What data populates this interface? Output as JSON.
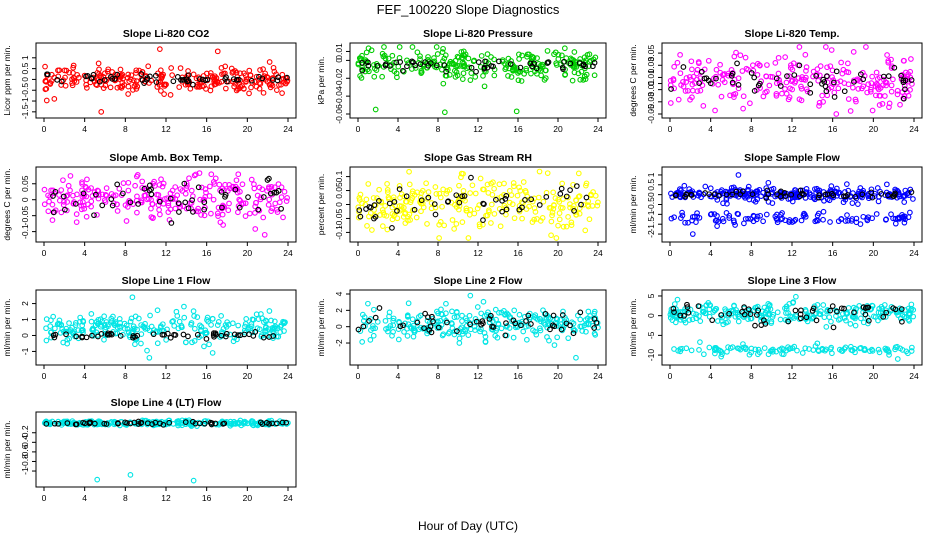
{
  "figure": {
    "title": "FEF_100220  Slope Diagnostics",
    "xlabel": "Hour of Day (UTC)"
  },
  "chart_data": [
    {
      "type": "scatter",
      "title": "Slope Li-820 CO2",
      "ylabel": "Licor ppm per min.",
      "color": "#ff0000",
      "xlim": [
        0,
        24
      ],
      "ylim": [
        -1.6,
        1.5
      ],
      "xticks": [
        0,
        4,
        8,
        12,
        16,
        20,
        24
      ],
      "yticks": [
        -1.5,
        -1.0,
        -0.5,
        0.0,
        0.5,
        1.0
      ],
      "center": 0.0,
      "spread": 0.28,
      "outlier_values": [
        1.4,
        -1.5,
        1.3,
        -0.9
      ],
      "black_spread": 0.12
    },
    {
      "type": "scatter",
      "title": "Slope Li-820 Pressure",
      "ylabel": "kPa per min.",
      "color": "#00cc00",
      "xlim": [
        0,
        24
      ],
      "ylim": [
        -0.06,
        0.015
      ],
      "xticks": [
        0,
        4,
        8,
        12,
        16,
        20,
        24
      ],
      "yticks": [
        -0.06,
        -0.04,
        -0.02,
        0.0,
        0.01
      ],
      "center": -0.005,
      "spread": 0.008,
      "outlier_values": [
        -0.058,
        -0.055,
        -0.057
      ],
      "black_spread": 0.003
    },
    {
      "type": "scatter",
      "title": "Slope Li-820 Temp.",
      "ylabel": "degrees C per min.",
      "color": "#ff00ff",
      "xlim": [
        0,
        24
      ],
      "ylim": [
        -0.05,
        0.06
      ],
      "xticks": [
        0,
        4,
        8,
        12,
        16,
        20,
        24
      ],
      "yticks": [
        -0.05,
        -0.03,
        -0.01,
        0.0,
        0.01,
        0.03,
        0.05
      ],
      "center": 0.005,
      "spread": 0.022,
      "outlier_values": [
        -0.045,
        0.055
      ],
      "black_spread": 0.015
    },
    {
      "type": "scatter",
      "title": "Slope Amb. Box Temp.",
      "ylabel": "degrees C per min.",
      "color": "#ff00ff",
      "xlim": [
        0,
        24
      ],
      "ylim": [
        -0.12,
        0.09
      ],
      "xticks": [
        0,
        4,
        8,
        12,
        16,
        20,
        24
      ],
      "yticks": [
        -0.1,
        -0.05,
        0.0,
        0.05
      ],
      "center": 0.0,
      "spread": 0.035,
      "outlier_values": [
        -0.11,
        0.08
      ],
      "black_spread": 0.03
    },
    {
      "type": "scatter",
      "title": "Slope Gas Stream RH",
      "ylabel": "percent per min.",
      "color": "#ffff00",
      "xlim": [
        0,
        24
      ],
      "ylim": [
        -0.12,
        0.12
      ],
      "xticks": [
        0,
        4,
        8,
        12,
        16,
        20,
        24
      ],
      "yticks": [
        -0.1,
        -0.05,
        0.0,
        0.05,
        0.1
      ],
      "center": 0.0,
      "spread": 0.045,
      "outlier_values": [
        -0.11,
        0.11
      ],
      "black_spread": 0.035
    },
    {
      "type": "scatter",
      "title": "Slope Sample Flow",
      "ylabel": "ml/min per min.",
      "color": "#0000ff",
      "xlim": [
        0,
        24
      ],
      "ylim": [
        -2.2,
        1.2
      ],
      "xticks": [
        0,
        4,
        8,
        12,
        16,
        20,
        24
      ],
      "yticks": [
        -2.0,
        -1.5,
        -1.0,
        -0.5,
        0.0,
        0.5,
        1.0
      ],
      "center": 0.0,
      "spread": 0.18,
      "band2_center": -1.2,
      "band2_spread": 0.15,
      "outlier_values": [
        -2.0,
        1.0
      ],
      "black_spread": 0.1
    },
    {
      "type": "scatter",
      "title": "Slope Line 1 Flow",
      "ylabel": "ml/min per min.",
      "color": "#00e5e5",
      "xlim": [
        0,
        24
      ],
      "ylim": [
        -1.6,
        2.6
      ],
      "xticks": [
        0,
        4,
        8,
        12,
        16,
        20,
        24
      ],
      "yticks": [
        -1,
        0,
        1,
        2
      ],
      "center": 0.4,
      "spread": 0.45,
      "outlier_values": [
        2.4,
        -1.4
      ],
      "black_fixed": 0.0,
      "black_spread": 0.08
    },
    {
      "type": "scatter",
      "title": "Slope Line 2 Flow",
      "ylabel": "ml/min per min.",
      "color": "#00e5e5",
      "xlim": [
        0,
        24
      ],
      "ylim": [
        -4.2,
        4.0
      ],
      "xticks": [
        0,
        4,
        8,
        12,
        16,
        20,
        24
      ],
      "yticks": [
        -2,
        0,
        2,
        4
      ],
      "center": 0.3,
      "spread": 1.0,
      "outlier_values": [
        3.8,
        -3.8
      ],
      "black_spread": 0.8
    },
    {
      "type": "scatter",
      "title": "Slope Line 3 Flow",
      "ylabel": "ml/min per min.",
      "color": "#00e5e5",
      "xlim": [
        0,
        24
      ],
      "ylim": [
        -11.5,
        5.5
      ],
      "xticks": [
        0,
        4,
        8,
        12,
        16,
        20,
        24
      ],
      "yticks": [
        -10,
        -5,
        0,
        5
      ],
      "center": 0.5,
      "spread": 1.2,
      "band2_center": -8.7,
      "band2_spread": 0.6,
      "outlier_values": [
        4.8,
        -11.0
      ],
      "black_spread": 1.5
    },
    {
      "type": "scatter",
      "title": "Slope Line 4 (LT) Flow",
      "ylabel": "ml/min per min.",
      "color": "#00e5e5",
      "xlim": [
        0,
        24
      ],
      "ylim": [
        -1.25,
        0.15
      ],
      "xticks": [
        0,
        4,
        8,
        12,
        16,
        20,
        24
      ],
      "yticks": [
        -1.0,
        -0.8,
        -0.6,
        -0.4,
        -0.2
      ],
      "center": 0.0,
      "spread": 0.025,
      "outlier_values": [
        -1.2,
        -1.18,
        -1.08
      ],
      "black_spread": 0.02
    }
  ]
}
